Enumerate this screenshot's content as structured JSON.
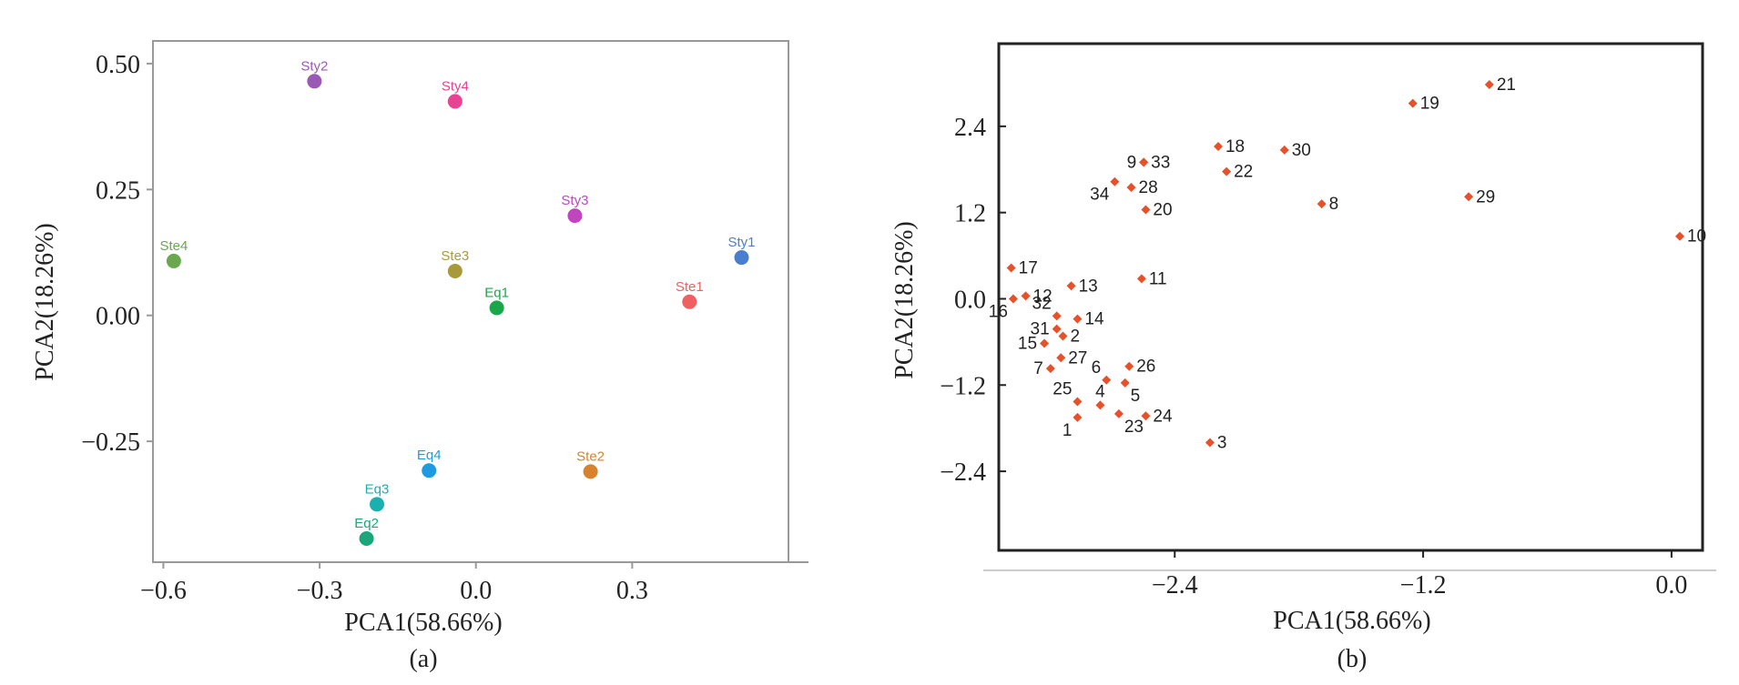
{
  "chart_data": [
    {
      "type": "scatter",
      "panel_label": "(a)",
      "xlabel": "PCA1(58.66%)",
      "ylabel": "PCA2(18.26%)",
      "xlim": [
        -0.62,
        0.6
      ],
      "ylim": [
        -0.49,
        0.545
      ],
      "xticks": [
        -0.6,
        -0.3,
        0.0,
        0.3
      ],
      "xtick_labels": [
        "−0.6",
        "−0.3",
        "0.0",
        "0.3"
      ],
      "yticks": [
        0.5,
        0.25,
        0.0,
        -0.25
      ],
      "ytick_labels": [
        "0.50",
        "0.25",
        "0.00",
        "−0.25"
      ],
      "points": [
        {
          "label": "Sty2",
          "x": -0.31,
          "y": 0.465,
          "color": "#9b59b6"
        },
        {
          "label": "Sty4",
          "x": -0.04,
          "y": 0.425,
          "color": "#e84393"
        },
        {
          "label": "Sty3",
          "x": 0.19,
          "y": 0.198,
          "color": "#c145c1"
        },
        {
          "label": "Sty1",
          "x": 0.51,
          "y": 0.115,
          "color": "#4a7fd0"
        },
        {
          "label": "Ste4",
          "x": -0.58,
          "y": 0.108,
          "color": "#6aa84f"
        },
        {
          "label": "Ste3",
          "x": -0.04,
          "y": 0.088,
          "color": "#a89a3a"
        },
        {
          "label": "Eq1",
          "x": 0.04,
          "y": 0.015,
          "color": "#1aa64a"
        },
        {
          "label": "Ste1",
          "x": 0.41,
          "y": 0.027,
          "color": "#f06060"
        },
        {
          "label": "Eq4",
          "x": -0.09,
          "y": -0.308,
          "color": "#1e9be0"
        },
        {
          "label": "Ste2",
          "x": 0.22,
          "y": -0.31,
          "color": "#d9822b"
        },
        {
          "label": "Eq3",
          "x": -0.19,
          "y": -0.375,
          "color": "#1ab0b0"
        },
        {
          "label": "Eq2",
          "x": -0.21,
          "y": -0.443,
          "color": "#1aa67a"
        }
      ]
    },
    {
      "type": "scatter",
      "panel_label": "(b)",
      "xlabel": "PCA1(58.66%)",
      "ylabel": "PCA2(18.26%)",
      "xlim": [
        -3.25,
        0.15
      ],
      "ylim": [
        -3.5,
        3.55
      ],
      "xticks": [
        -2.4,
        -1.2,
        0.0
      ],
      "xtick_labels": [
        "−2.4",
        "−1.2",
        "0.0"
      ],
      "yticks": [
        2.4,
        1.2,
        0.0,
        -1.2,
        -2.4
      ],
      "ytick_labels": [
        "2.4",
        "1.2",
        "0.0",
        "−1.2",
        "−2.4"
      ],
      "marker_color": "#e8502a",
      "points": [
        {
          "label": "21",
          "x": -0.88,
          "y": 2.98,
          "lp": "r"
        },
        {
          "label": "19",
          "x": -1.25,
          "y": 2.72,
          "lp": "r"
        },
        {
          "label": "18",
          "x": -2.19,
          "y": 2.12,
          "lp": "r"
        },
        {
          "label": "30",
          "x": -1.87,
          "y": 2.07,
          "lp": "r"
        },
        {
          "label": "9",
          "x": -2.55,
          "y": 1.9,
          "lp": "l"
        },
        {
          "label": "33",
          "x": -2.55,
          "y": 1.9,
          "lp": "r"
        },
        {
          "label": "22",
          "x": -2.15,
          "y": 1.77,
          "lp": "r"
        },
        {
          "label": "34",
          "x": -2.69,
          "y": 1.63,
          "lp": "bl"
        },
        {
          "label": "28",
          "x": -2.61,
          "y": 1.55,
          "lp": "r"
        },
        {
          "label": "8",
          "x": -1.69,
          "y": 1.32,
          "lp": "r"
        },
        {
          "label": "29",
          "x": -0.98,
          "y": 1.42,
          "lp": "r"
        },
        {
          "label": "20",
          "x": -2.54,
          "y": 1.24,
          "lp": "r"
        },
        {
          "label": "10",
          "x": 0.04,
          "y": 0.87,
          "lp": "r"
        },
        {
          "label": "17",
          "x": -3.19,
          "y": 0.43,
          "lp": "r"
        },
        {
          "label": "11",
          "x": -2.56,
          "y": 0.28,
          "lp": "r"
        },
        {
          "label": "13",
          "x": -2.9,
          "y": 0.18,
          "lp": "r"
        },
        {
          "label": "12",
          "x": -3.12,
          "y": 0.04,
          "lp": "r"
        },
        {
          "label": "16",
          "x": -3.18,
          "y": 0.0,
          "lp": "bl"
        },
        {
          "label": "32",
          "x": -2.97,
          "y": -0.24,
          "lp": "tl"
        },
        {
          "label": "14",
          "x": -2.87,
          "y": -0.28,
          "lp": "r"
        },
        {
          "label": "31",
          "x": -2.97,
          "y": -0.42,
          "lp": "l"
        },
        {
          "label": "2",
          "x": -2.94,
          "y": -0.52,
          "lp": "r"
        },
        {
          "label": "15",
          "x": -3.03,
          "y": -0.62,
          "lp": "l"
        },
        {
          "label": "27",
          "x": -2.95,
          "y": -0.82,
          "lp": "r"
        },
        {
          "label": "26",
          "x": -2.62,
          "y": -0.94,
          "lp": "r"
        },
        {
          "label": "7",
          "x": -3.0,
          "y": -0.97,
          "lp": "l"
        },
        {
          "label": "6",
          "x": -2.73,
          "y": -1.13,
          "lp": "tl"
        },
        {
          "label": "5",
          "x": -2.64,
          "y": -1.17,
          "lp": "br"
        },
        {
          "label": "25",
          "x": -2.87,
          "y": -1.43,
          "lp": "tl"
        },
        {
          "label": "4",
          "x": -2.76,
          "y": -1.48,
          "lp": "t"
        },
        {
          "label": "24",
          "x": -2.54,
          "y": -1.63,
          "lp": "r"
        },
        {
          "label": "23",
          "x": -2.67,
          "y": -1.6,
          "lp": "br"
        },
        {
          "label": "1",
          "x": -2.87,
          "y": -1.65,
          "lp": "bl"
        },
        {
          "label": "3",
          "x": -2.23,
          "y": -2.0,
          "lp": "r"
        }
      ]
    }
  ]
}
